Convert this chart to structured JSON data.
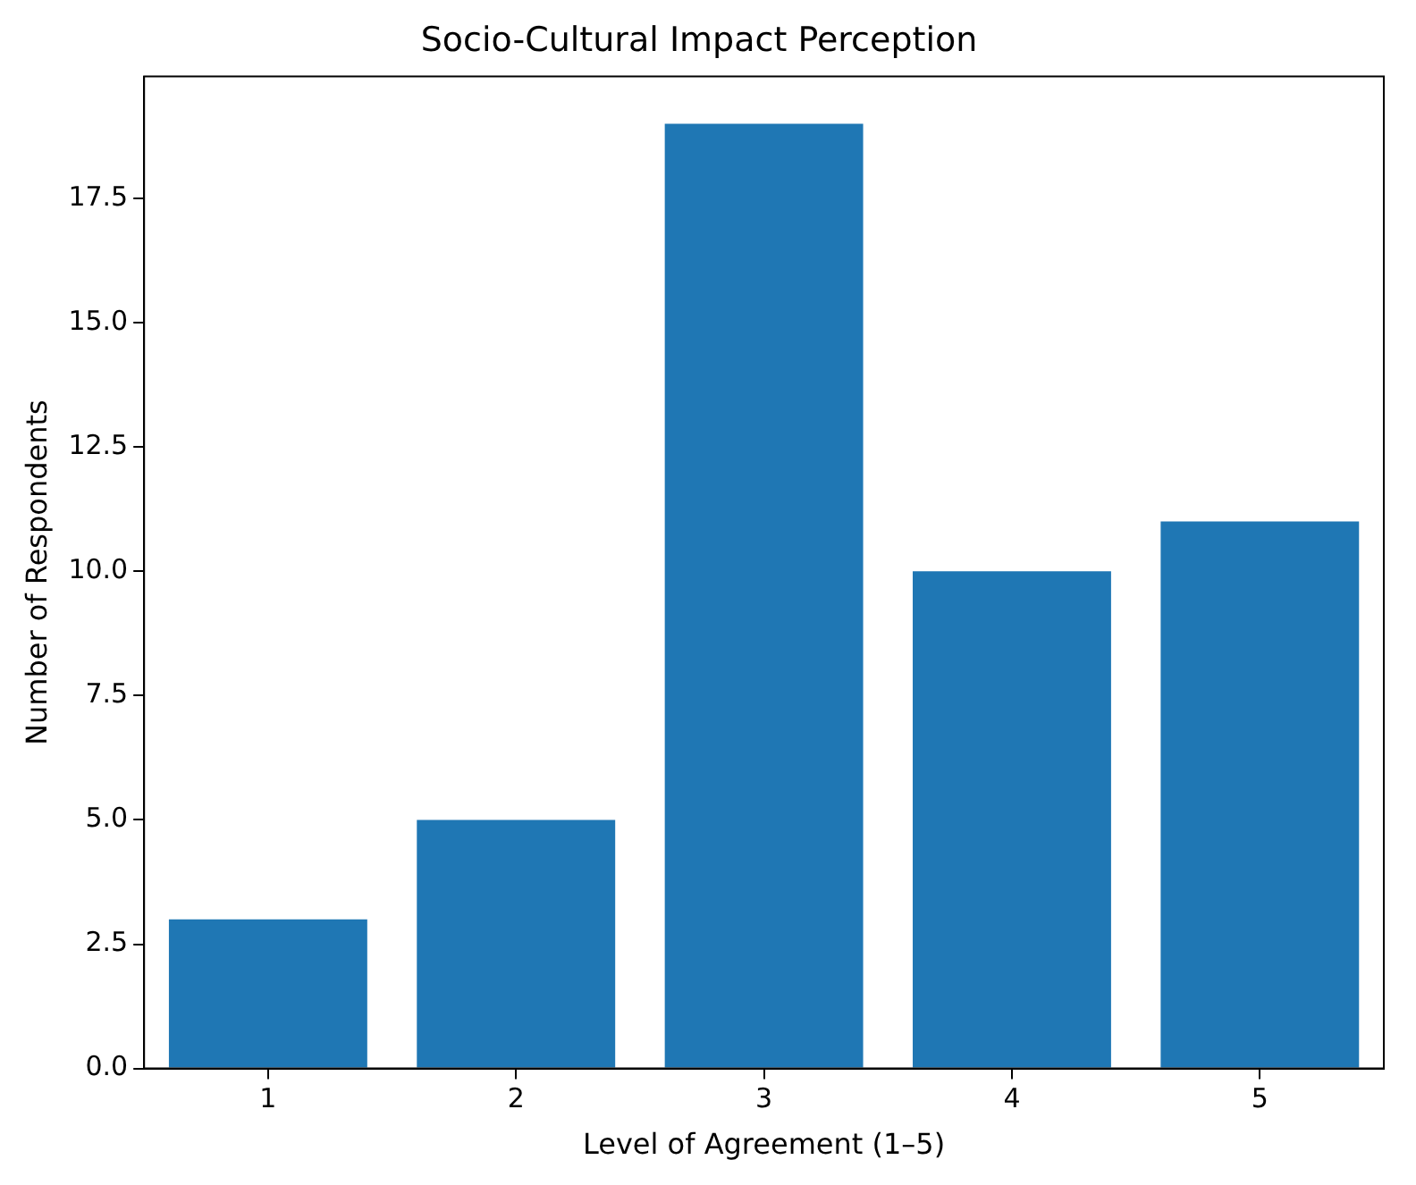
{
  "chart_data": {
    "type": "bar",
    "title": "Socio-Cultural Impact Perception",
    "xlabel": "Level of Agreement (1–5)",
    "ylabel": "Number of Respondents",
    "categories": [
      "1",
      "2",
      "3",
      "4",
      "5"
    ],
    "values": [
      3,
      5,
      19,
      10,
      11
    ],
    "color": "#1f77b4",
    "ylim": [
      0,
      19.95
    ],
    "yticks": [
      {
        "value": 0,
        "label": "0.0"
      },
      {
        "value": 2.5,
        "label": "2.5"
      },
      {
        "value": 5,
        "label": "5.0"
      },
      {
        "value": 7.5,
        "label": "7.5"
      },
      {
        "value": 10,
        "label": "10.0"
      },
      {
        "value": 12.5,
        "label": "12.5"
      },
      {
        "value": 15,
        "label": "15.0"
      },
      {
        "value": 17.5,
        "label": "17.5"
      }
    ],
    "grid": false,
    "legend": false
  }
}
